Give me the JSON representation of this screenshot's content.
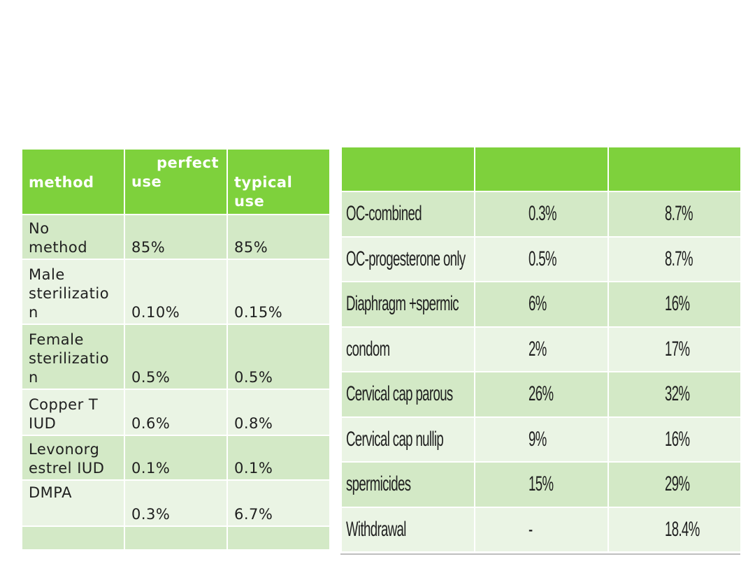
{
  "left_table": {
    "headers": {
      "method": "method",
      "perfect_line1": "perfect",
      "perfect_line2": "use",
      "typical_line1": "typical",
      "typical_line2": "use"
    },
    "rows": [
      {
        "method_lines": [
          "No",
          "method"
        ],
        "perfect": "85%",
        "typical": "85%"
      },
      {
        "method_lines": [
          "Male",
          "sterilizatio",
          "n"
        ],
        "perfect": "0.10%",
        "typical": "0.15%"
      },
      {
        "method_lines": [
          "Female",
          "sterilizatio",
          "n"
        ],
        "perfect": "0.5%",
        "typical": "0.5%"
      },
      {
        "method_lines": [
          "Copper T",
          "IUD"
        ],
        "perfect": "0.6%",
        "typical": "0.8%"
      },
      {
        "method_lines": [
          "Levonorg",
          "estrel IUD"
        ],
        "perfect": "0.1%",
        "typical": "0.1%"
      },
      {
        "method_lines": [
          "DMPA"
        ],
        "perfect": "0.3%",
        "typical": "6.7%"
      },
      {
        "method_lines": [
          ""
        ],
        "perfect": "",
        "typical": ""
      }
    ]
  },
  "right_table": {
    "rows": [
      {
        "method": "OC-combined",
        "perfect": "0.3%",
        "typical": "8.7%"
      },
      {
        "method": "OC-progesterone only",
        "perfect": "0.5%",
        "typical": "8.7%"
      },
      {
        "method": "Diaphragm +spermic",
        "perfect": "6%",
        "typical": "16%"
      },
      {
        "method": "condom",
        "perfect": "2%",
        "typical": "17%"
      },
      {
        "method": "Cervical cap parous",
        "perfect": "26%",
        "typical": "32%"
      },
      {
        "method": "Cervical cap nullip",
        "perfect": "9%",
        "typical": "16%"
      },
      {
        "method": "spermicides",
        "perfect": "15%",
        "typical": "29%"
      },
      {
        "method": "Withdrawal",
        "perfect": "-",
        "typical": "18.4%"
      }
    ]
  },
  "colors": {
    "header_green": "#7ed13c",
    "row_dark": "#d3e9c6",
    "row_light": "#eaf4e4"
  }
}
